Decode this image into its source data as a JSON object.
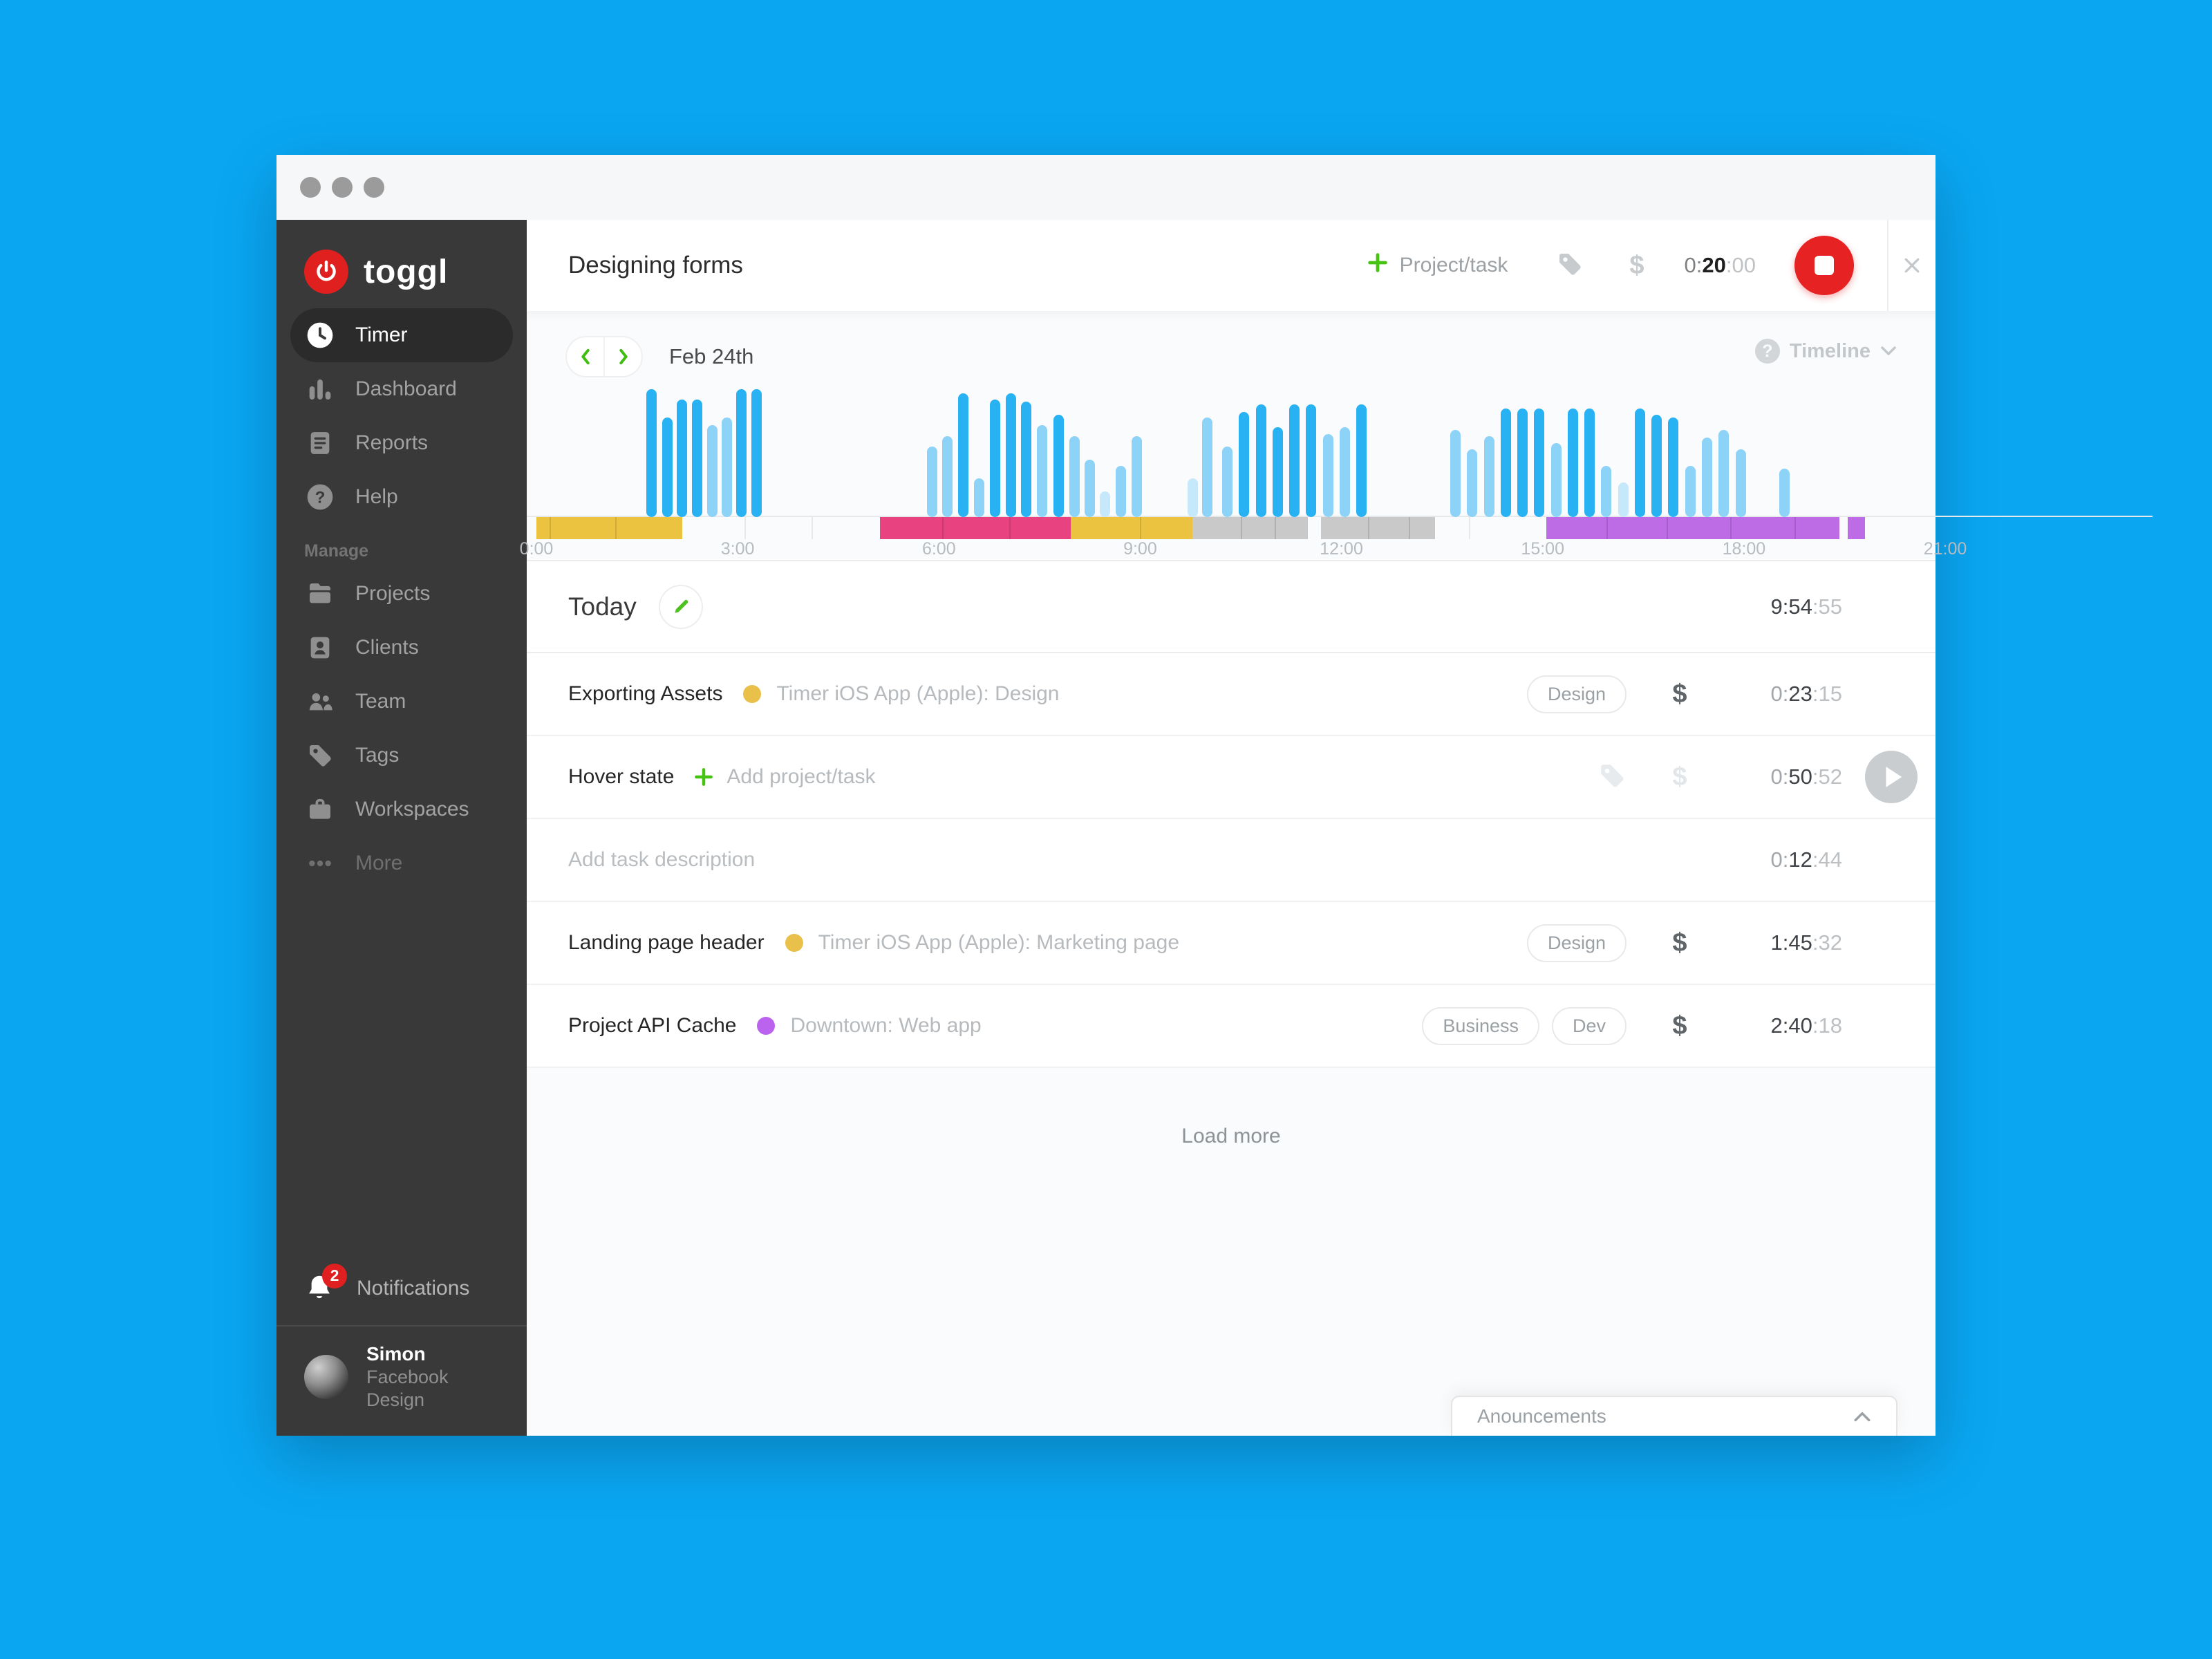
{
  "sidebar": {
    "logo_text": "toggl",
    "items": [
      {
        "label": "Timer",
        "icon": "clock",
        "active": true
      },
      {
        "label": "Dashboard",
        "icon": "bar-chart",
        "active": false
      },
      {
        "label": "Reports",
        "icon": "document",
        "active": false
      },
      {
        "label": "Help",
        "icon": "question",
        "active": false
      }
    ],
    "manage_label": "Manage",
    "manage_items": [
      {
        "label": "Projects",
        "icon": "folder"
      },
      {
        "label": "Clients",
        "icon": "id-card"
      },
      {
        "label": "Team",
        "icon": "people"
      },
      {
        "label": "Tags",
        "icon": "tag"
      },
      {
        "label": "Workspaces",
        "icon": "briefcase"
      },
      {
        "label": "More",
        "icon": "ellipsis",
        "muted": true
      }
    ],
    "notifications": {
      "label": "Notifications",
      "badge": "2"
    },
    "user": {
      "name": "Simon",
      "workspace": "Facebook Design"
    }
  },
  "topbar": {
    "task_name": "Designing forms",
    "project_task_label": "Project/task",
    "billable_symbol": "$",
    "timer": {
      "pre": "0:",
      "main": "20",
      "suf": ":00"
    }
  },
  "timeline_header": {
    "date_label": "Feb 24th",
    "dropdown_label": "Timeline",
    "help_symbol": "?"
  },
  "chart_data": {
    "type": "bar",
    "subtype": "daily-activity-timeline",
    "title": "Feb 24th activity",
    "x_unit": "hours",
    "x_range": [
      0,
      21
    ],
    "grid": false,
    "ticks": [
      {
        "hour": 0,
        "label": "0:00"
      },
      {
        "hour": 3,
        "label": "3:00"
      },
      {
        "hour": 6,
        "label": "6:00"
      },
      {
        "hour": 9,
        "label": "9:00"
      },
      {
        "hour": 12,
        "label": "12:00"
      },
      {
        "hour": 15,
        "label": "15:00"
      },
      {
        "hour": 18,
        "label": "18:00"
      },
      {
        "hour": 21,
        "label": "21:00"
      }
    ],
    "palette": {
      "dark": "#29b2f3",
      "light": "#8dd3f7",
      "xlight": "#c5e8fb"
    },
    "bars": [
      [
        1.72,
        1.0,
        "dark"
      ],
      [
        1.95,
        0.78,
        "dark"
      ],
      [
        2.17,
        0.92,
        "dark"
      ],
      [
        2.4,
        0.92,
        "dark"
      ],
      [
        2.62,
        0.72,
        "light"
      ],
      [
        2.84,
        0.78,
        "light"
      ],
      [
        3.06,
        1.0,
        "dark"
      ],
      [
        3.28,
        1.0,
        "dark"
      ],
      [
        5.9,
        0.55,
        "light"
      ],
      [
        6.13,
        0.63,
        "light"
      ],
      [
        6.36,
        0.97,
        "dark"
      ],
      [
        6.6,
        0.3,
        "light"
      ],
      [
        6.84,
        0.92,
        "dark"
      ],
      [
        7.07,
        0.97,
        "dark"
      ],
      [
        7.3,
        0.9,
        "dark"
      ],
      [
        7.54,
        0.72,
        "light"
      ],
      [
        7.78,
        0.8,
        "dark"
      ],
      [
        8.02,
        0.63,
        "light"
      ],
      [
        8.25,
        0.45,
        "light"
      ],
      [
        8.48,
        0.2,
        "xlight"
      ],
      [
        8.71,
        0.4,
        "light"
      ],
      [
        8.95,
        0.63,
        "light"
      ],
      [
        9.78,
        0.3,
        "xlight"
      ],
      [
        10.0,
        0.78,
        "light"
      ],
      [
        10.3,
        0.55,
        "light"
      ],
      [
        10.55,
        0.82,
        "dark"
      ],
      [
        10.8,
        0.88,
        "dark"
      ],
      [
        11.05,
        0.7,
        "dark"
      ],
      [
        11.3,
        0.88,
        "dark"
      ],
      [
        11.55,
        0.88,
        "dark"
      ],
      [
        11.8,
        0.65,
        "light"
      ],
      [
        12.05,
        0.7,
        "light"
      ],
      [
        12.3,
        0.88,
        "dark"
      ],
      [
        13.7,
        0.68,
        "light"
      ],
      [
        13.95,
        0.53,
        "light"
      ],
      [
        14.2,
        0.63,
        "light"
      ],
      [
        14.45,
        0.85,
        "dark"
      ],
      [
        14.7,
        0.85,
        "dark"
      ],
      [
        14.95,
        0.85,
        "dark"
      ],
      [
        15.2,
        0.58,
        "light"
      ],
      [
        15.45,
        0.85,
        "dark"
      ],
      [
        15.7,
        0.85,
        "dark"
      ],
      [
        15.95,
        0.4,
        "light"
      ],
      [
        16.2,
        0.27,
        "xlight"
      ],
      [
        16.45,
        0.85,
        "dark"
      ],
      [
        16.7,
        0.8,
        "dark"
      ],
      [
        16.95,
        0.78,
        "dark"
      ],
      [
        17.2,
        0.4,
        "light"
      ],
      [
        17.45,
        0.62,
        "light"
      ],
      [
        17.7,
        0.68,
        "light"
      ],
      [
        17.95,
        0.53,
        "light"
      ],
      [
        18.6,
        0.38,
        "light"
      ]
    ],
    "strip_segments": [
      {
        "start": 0.0,
        "end": 2.17,
        "color": "#ecc340",
        "dividers": [
          0.2,
          1.17
        ]
      },
      {
        "start": 5.12,
        "end": 7.97,
        "color": "#e84380",
        "dividers": [
          6.05,
          7.05
        ]
      },
      {
        "start": 7.97,
        "end": 9.78,
        "color": "#ecc340",
        "dividers": [
          9.0
        ]
      },
      {
        "start": 9.78,
        "end": 11.5,
        "color": "#c9c9c9",
        "dividers": [
          10.5,
          11.0
        ]
      },
      {
        "start": 11.7,
        "end": 13.4,
        "color": "#c9c9c9",
        "dividers": [
          12.4,
          13.0
        ]
      },
      {
        "start": 15.05,
        "end": 19.42,
        "color": "#bd6ce6",
        "dividers": [
          15.95,
          16.85,
          17.8,
          18.75
        ]
      },
      {
        "start": 19.55,
        "end": 19.8,
        "color": "#bd6ce6",
        "dividers": []
      }
    ],
    "gap_dividers": [
      3.1,
      4.1,
      13.9
    ]
  },
  "entries_section": {
    "group_title": "Today",
    "group_total": {
      "pre": "",
      "main": "9:54",
      "suf": ":55"
    },
    "entries": [
      {
        "description": "Exporting Assets",
        "project": "Timer iOS App (Apple): Design",
        "project_color": "#e9c04a",
        "tags": [
          "Design"
        ],
        "billable": "dark",
        "billable_symbol": "$",
        "time": {
          "pre": "0:",
          "main": "23",
          "suf": ":15"
        }
      },
      {
        "description": "Hover state",
        "add_project_label": "Add project/task",
        "tags": [],
        "tag_icon": true,
        "billable": "pale",
        "billable_symbol": "$",
        "time": {
          "pre": "0:",
          "main": "50",
          "suf": ":52"
        },
        "play_button": true
      },
      {
        "description_placeholder": "Add task description",
        "tags": [],
        "time": {
          "pre": "0:",
          "main": "12",
          "suf": ":44"
        }
      },
      {
        "description": "Landing page header",
        "project": "Timer iOS App (Apple): Marketing page",
        "project_color": "#e9c04a",
        "tags": [
          "Design"
        ],
        "billable": "dark",
        "billable_symbol": "$",
        "time": {
          "pre": "",
          "main": "1:45",
          "suf": ":32"
        }
      },
      {
        "description": "Project API Cache",
        "project": "Downtown: Web app",
        "project_color": "#bb63ee",
        "tags": [
          "Business",
          "Dev"
        ],
        "billable": "dark",
        "billable_symbol": "$",
        "time": {
          "pre": "",
          "main": "2:40",
          "suf": ":18"
        }
      }
    ],
    "load_more_label": "Load more"
  },
  "announcements": {
    "label": "Anouncements"
  }
}
